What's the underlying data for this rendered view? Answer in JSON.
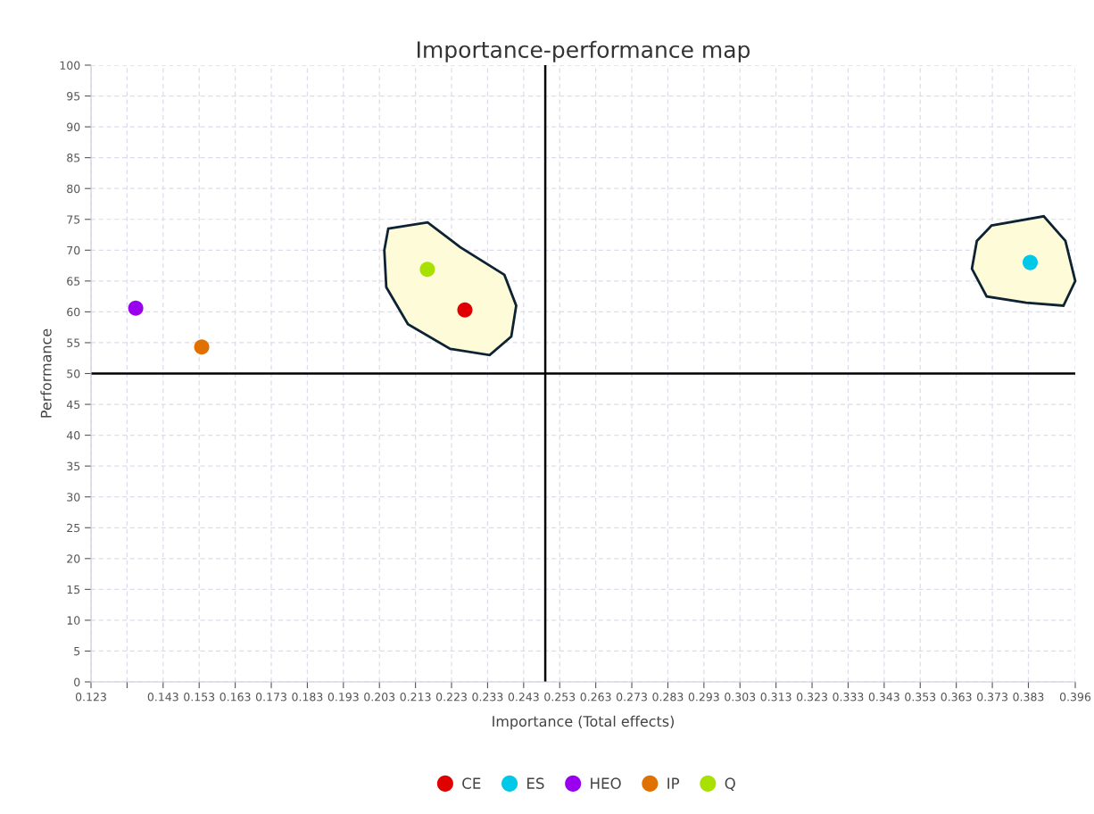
{
  "chart_data": {
    "type": "scatter",
    "title": "Importance-performance map",
    "xlabel": "Importance (Total effects)",
    "ylabel": "Performance",
    "xlim": [
      0.123,
      0.396
    ],
    "ylim": [
      0,
      100
    ],
    "xticks": [
      0.123,
      {
        "value": 0.133,
        "label": null
      },
      0.143,
      0.153,
      0.163,
      0.173,
      0.183,
      0.193,
      0.203,
      0.213,
      0.223,
      0.233,
      0.243,
      0.253,
      0.263,
      0.273,
      0.283,
      0.293,
      0.303,
      0.313,
      0.323,
      0.333,
      0.343,
      0.353,
      0.363,
      0.373,
      0.383,
      0.396
    ],
    "yticks": [
      0,
      5,
      10,
      15,
      20,
      25,
      30,
      35,
      40,
      45,
      50,
      55,
      60,
      65,
      70,
      75,
      80,
      85,
      90,
      95,
      100
    ],
    "series": [
      {
        "name": "CE",
        "color": "#e00000",
        "x": [
          0.2267
        ],
        "values": [
          60.3
        ]
      },
      {
        "name": "ES",
        "color": "#00c8e8",
        "x": [
          0.3835
        ],
        "values": [
          68.0
        ]
      },
      {
        "name": "HEO",
        "color": "#9900ee",
        "x": [
          0.1354
        ],
        "values": [
          60.6
        ]
      },
      {
        "name": "IP",
        "color": "#e07000",
        "x": [
          0.1537
        ],
        "values": [
          54.3
        ]
      },
      {
        "name": "Q",
        "color": "#a8e000",
        "x": [
          0.2163
        ],
        "values": [
          66.9
        ]
      }
    ],
    "ref_lines": [
      {
        "axis": "x",
        "value": 0.249,
        "color": "#000000"
      },
      {
        "axis": "y",
        "value": 50,
        "color": "#000000"
      }
    ],
    "grid": true,
    "legend": "bottom",
    "marker": "circle"
  }
}
